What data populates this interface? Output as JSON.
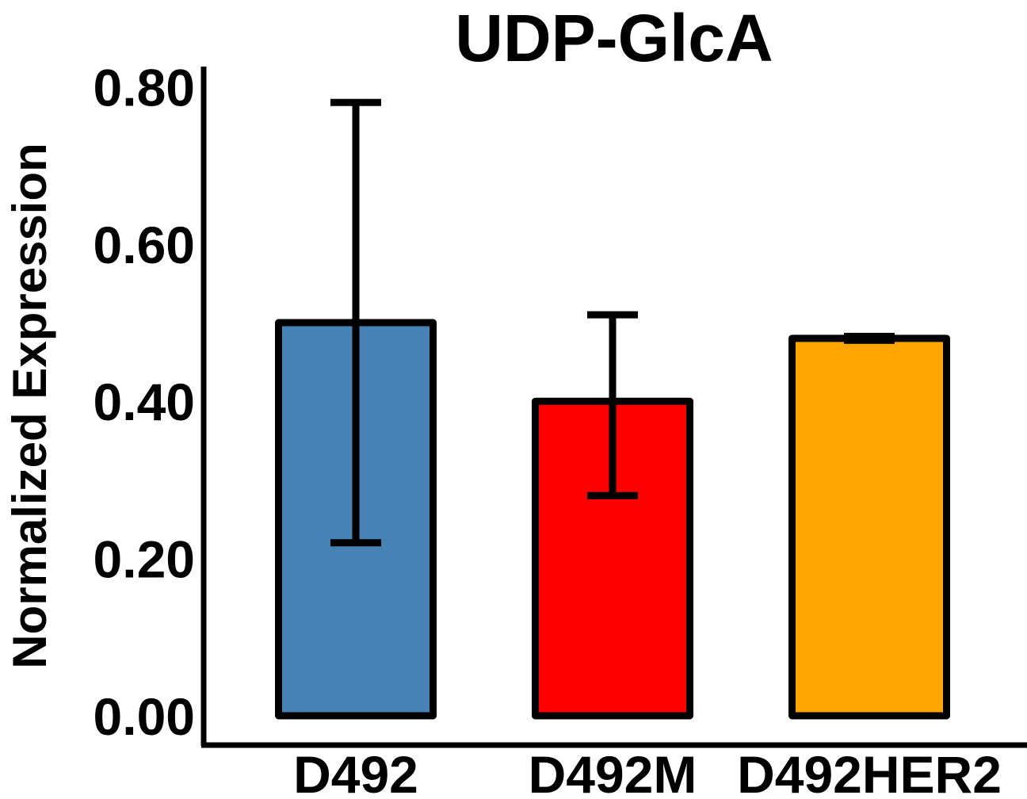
{
  "chart_data": {
    "type": "bar",
    "title": "UDP-GlcA",
    "xlabel": "",
    "ylabel": "Normalized Expression",
    "categories": [
      "D492",
      "D492M",
      "D492HER2"
    ],
    "values": [
      0.5,
      0.4,
      0.48
    ],
    "error": {
      "lower": [
        0.22,
        0.28,
        0.473
      ],
      "upper": [
        0.78,
        0.51,
        0.487
      ]
    },
    "colors": [
      "#4682B4",
      "#FF0000",
      "#FFA500"
    ],
    "ylim": [
      0,
      0.84
    ],
    "yticks": [
      0.0,
      0.2,
      0.4,
      0.6,
      0.8
    ],
    "ytick_labels": [
      "0.00",
      "0.20",
      "0.40",
      "0.60",
      "0.80"
    ],
    "grid": false,
    "legend": "none"
  }
}
